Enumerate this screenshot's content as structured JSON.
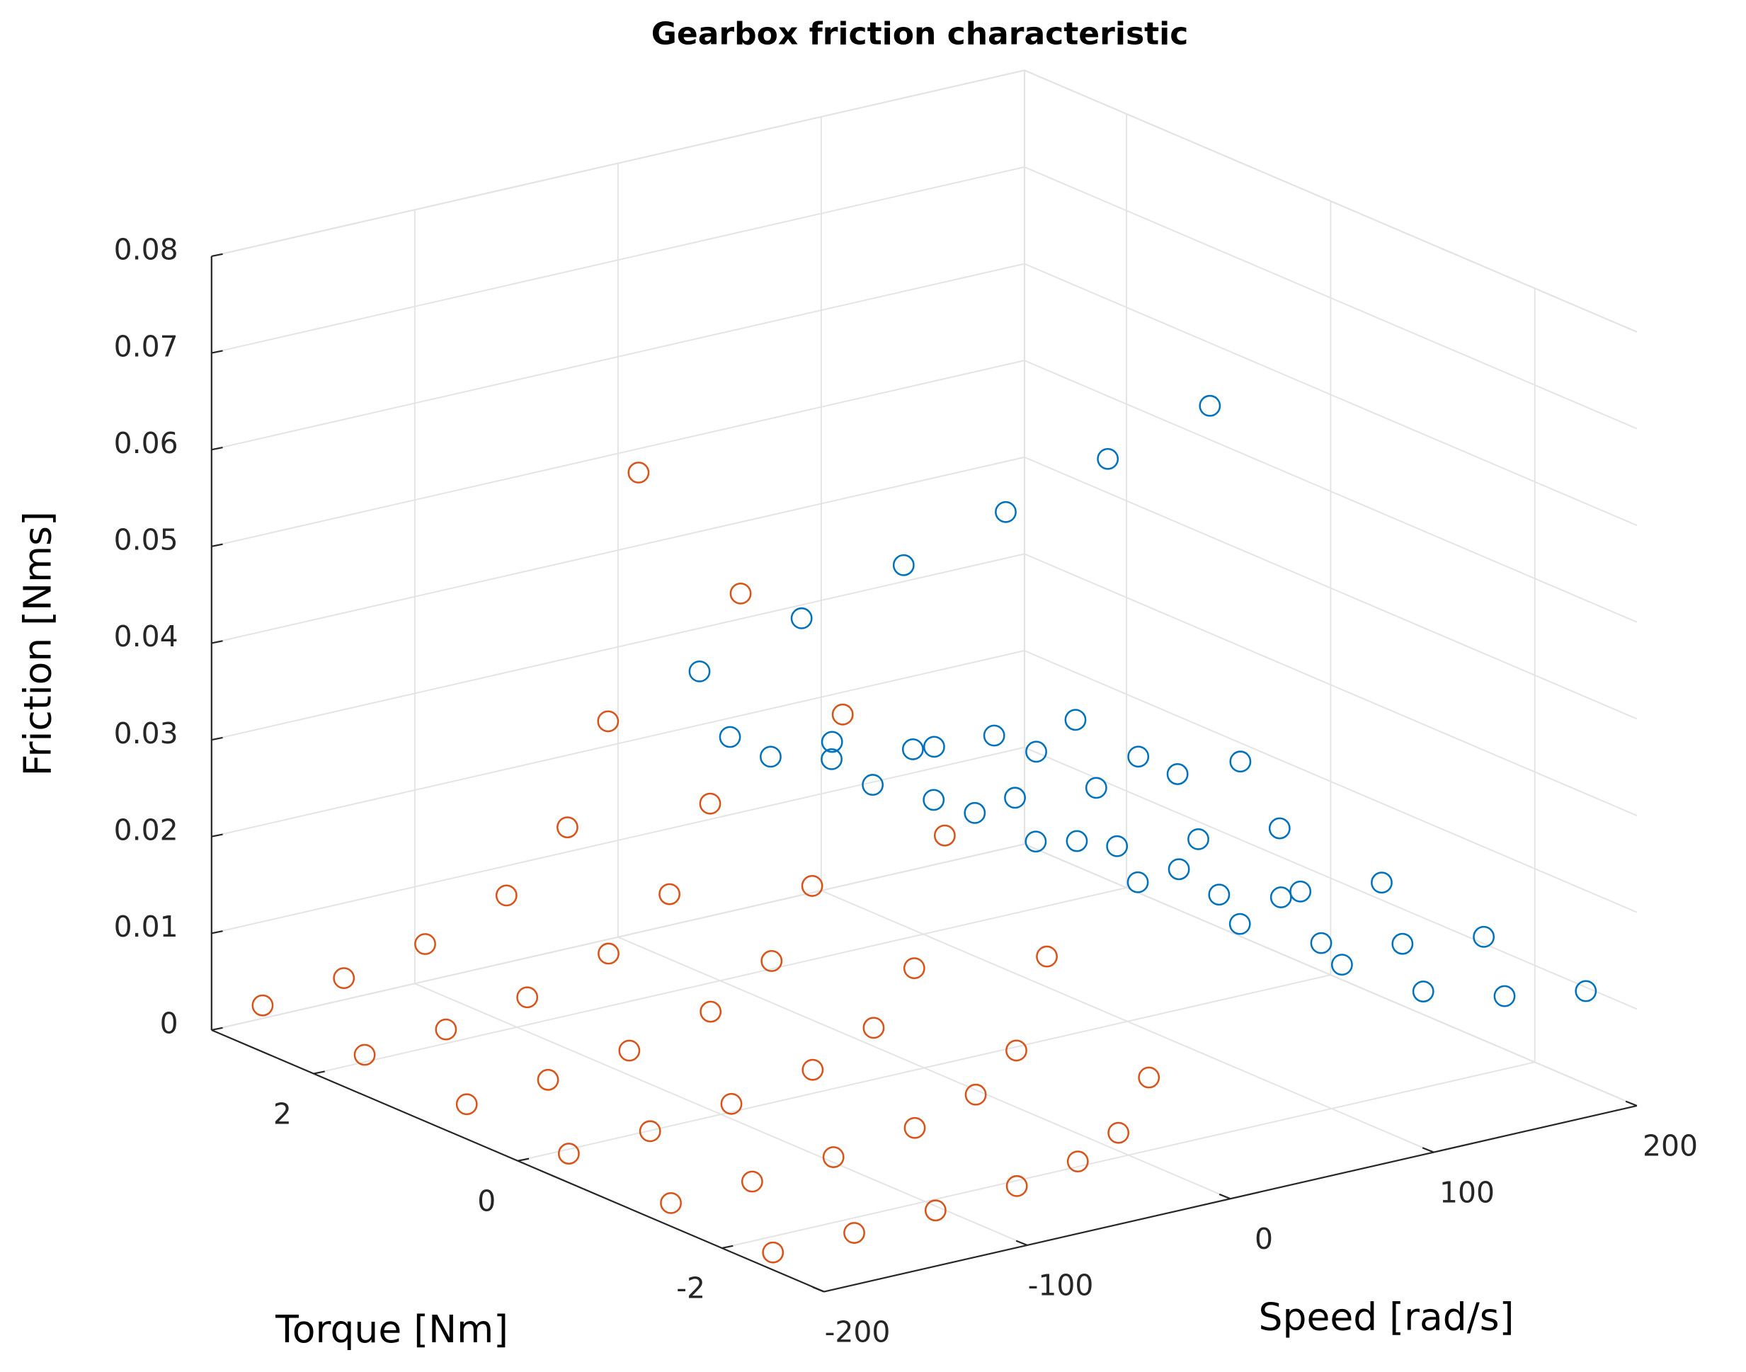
{
  "chart_data": {
    "type": "scatter3d",
    "title": "Gearbox friction characteristic",
    "xlabel": "Speed [rad/s]",
    "ylabel": "Torque [Nm]",
    "zlabel": "Friction [Nms]",
    "xlim": [
      -200,
      200
    ],
    "xticks": [
      -200,
      -100,
      0,
      100,
      200
    ],
    "ylim": [
      -3,
      3
    ],
    "yticks": [
      -2,
      0,
      2
    ],
    "zlim": [
      0,
      0.08
    ],
    "zticks": [
      0,
      0.01,
      0.02,
      0.03,
      0.04,
      0.05,
      0.06,
      0.07,
      0.08
    ],
    "grid": true,
    "series": [
      {
        "color": "#D95319",
        "x": [
          -200,
          -200,
          -200,
          -200,
          -200,
          -200,
          -160,
          -160,
          -160,
          -160,
          -160,
          -160,
          -120,
          -120,
          -120,
          -120,
          -120,
          -120,
          -80,
          -80,
          -80,
          -80,
          -80,
          -80,
          -50,
          -50,
          -50,
          -50,
          -50,
          -50,
          -30,
          -30,
          -30,
          -30,
          -30,
          -30,
          -15,
          -15,
          -15,
          -15,
          -15,
          -15
        ],
        "y": [
          -2.5,
          -1.5,
          -0.5,
          0.5,
          1.5,
          2.5,
          -2.5,
          -1.5,
          -0.5,
          0.5,
          1.5,
          2.5,
          -2.5,
          -1.5,
          -0.5,
          0.5,
          1.5,
          2.5,
          -2.5,
          -1.5,
          -0.5,
          0.5,
          1.5,
          2.5,
          -2.5,
          -1.5,
          -0.5,
          0.5,
          1.5,
          2.5,
          -2.5,
          -1.5,
          -0.5,
          0.5,
          1.5,
          2.5,
          -2.5,
          -1.5,
          -0.5,
          0.5,
          1.5,
          2.5
        ],
        "z": [
          0.0018,
          0.0024,
          0.003,
          0.0036,
          0.0042,
          0.0048,
          0.0019,
          0.0027,
          0.0034,
          0.0042,
          0.0049,
          0.0057,
          0.0023,
          0.0033,
          0.0043,
          0.0053,
          0.0063,
          0.0073,
          0.0029,
          0.0044,
          0.0059,
          0.0074,
          0.0089,
          0.0104,
          0.004,
          0.0064,
          0.0088,
          0.0112,
          0.0136,
          0.016,
          0.006,
          0.01,
          0.014,
          0.018,
          0.022,
          0.026,
          0.011,
          0.019,
          0.027,
          0.035,
          0.043,
          0.051
        ]
      },
      {
        "color": "#0072BD",
        "x": [
          200,
          200,
          200,
          200,
          200,
          200,
          160,
          160,
          160,
          160,
          160,
          160,
          120,
          120,
          120,
          120,
          120,
          120,
          80,
          80,
          80,
          80,
          80,
          80,
          50,
          50,
          50,
          50,
          50,
          50,
          30,
          30,
          30,
          30,
          30,
          30,
          15,
          15,
          15,
          15,
          15,
          15
        ],
        "y": [
          -2.5,
          -1.5,
          -0.5,
          0.5,
          1.5,
          2.5,
          -2.5,
          -1.5,
          -0.5,
          0.5,
          1.5,
          2.5,
          -2.5,
          -1.5,
          -0.5,
          0.5,
          1.5,
          2.5,
          -2.5,
          -1.5,
          -0.5,
          0.5,
          1.5,
          2.5,
          -2.5,
          -1.5,
          -0.5,
          0.5,
          1.5,
          2.5,
          -2.5,
          -1.5,
          -0.5,
          0.5,
          1.5,
          2.5,
          -2.5,
          -1.5,
          -0.5,
          0.5,
          1.5,
          2.5
        ],
        "z": [
          0.0096,
          0.0107,
          0.0118,
          0.0129,
          0.014,
          0.0151,
          0.011,
          0.0119,
          0.0128,
          0.0137,
          0.0145,
          0.0154,
          0.0134,
          0.0139,
          0.0144,
          0.0149,
          0.0154,
          0.0159,
          0.0181,
          0.0178,
          0.0176,
          0.0173,
          0.0171,
          0.0168,
          0.0265,
          0.0249,
          0.0233,
          0.0217,
          0.0201,
          0.0185,
          0.0415,
          0.0375,
          0.0335,
          0.0295,
          0.0255,
          0.0215,
          0.079,
          0.069,
          0.059,
          0.049,
          0.039,
          0.029
        ]
      }
    ]
  }
}
